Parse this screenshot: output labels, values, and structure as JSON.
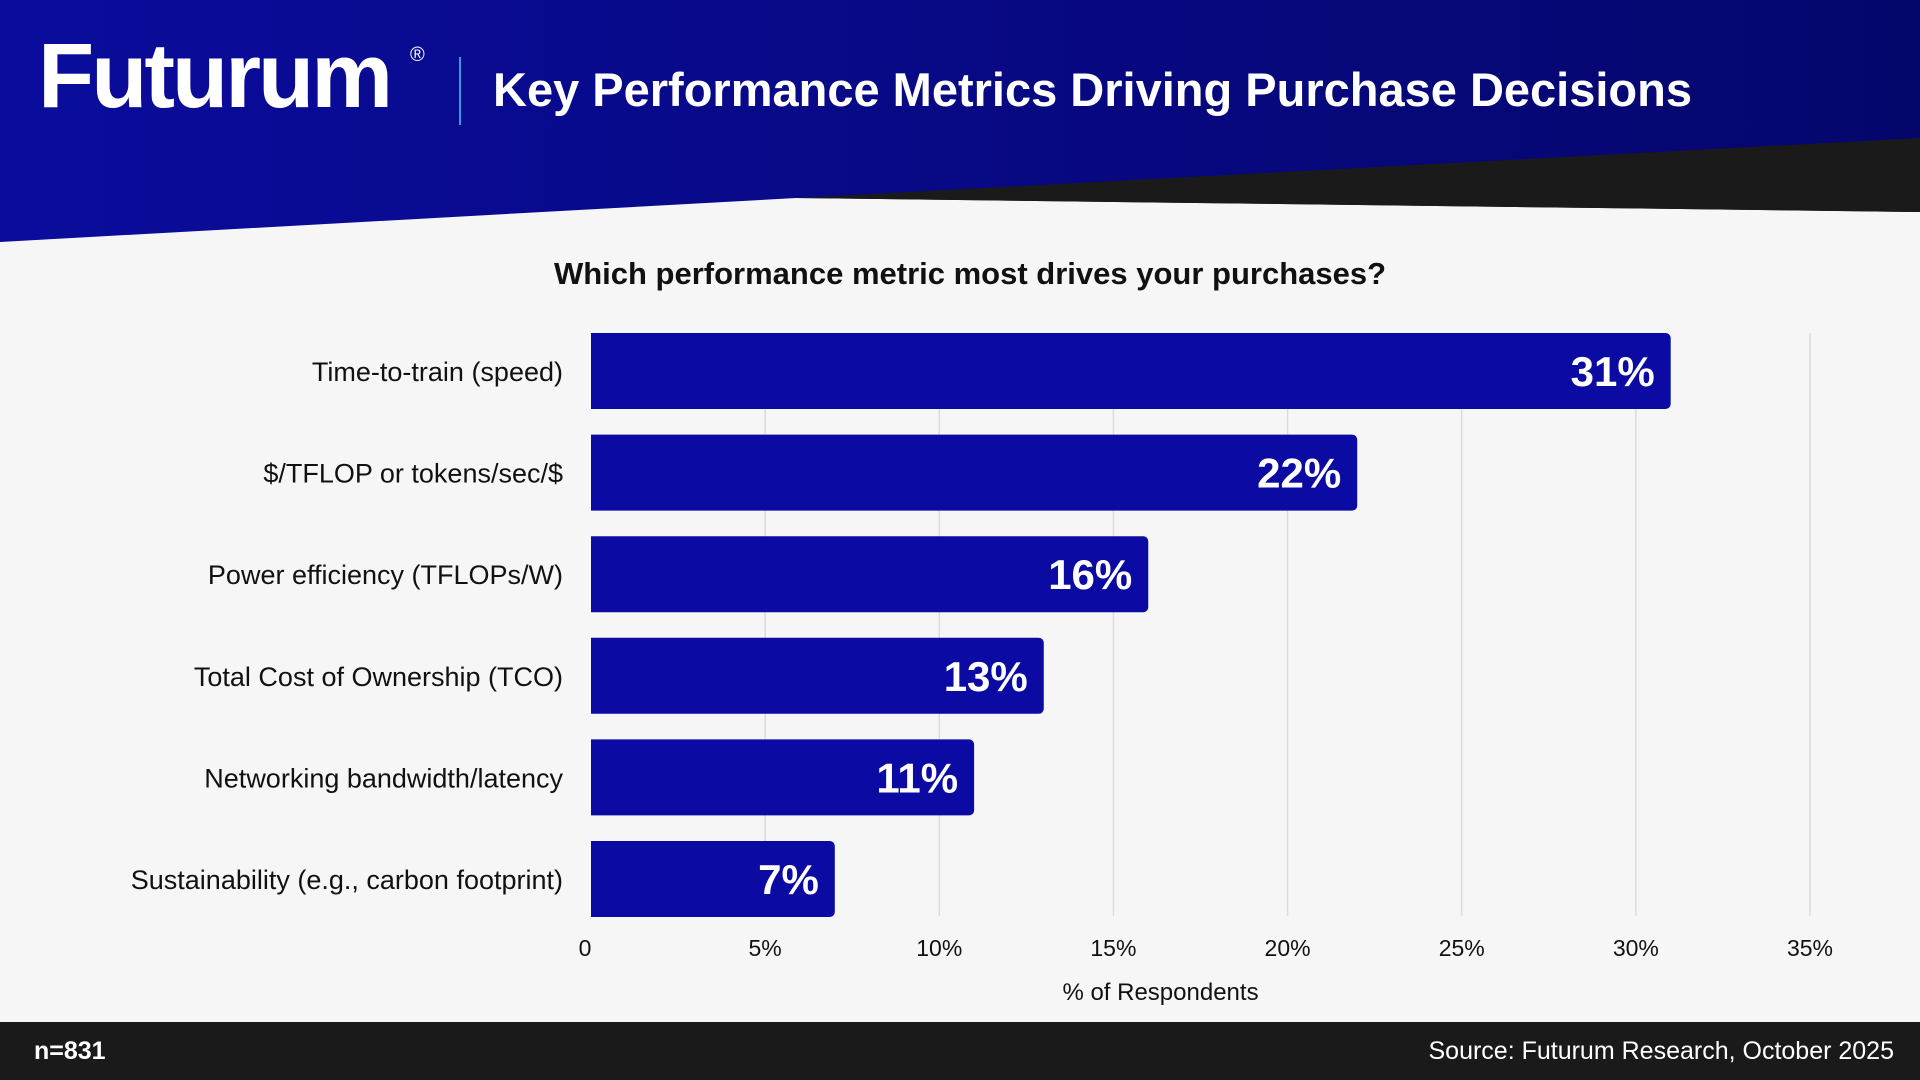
{
  "header": {
    "logo": "Futurum",
    "registered": "®",
    "title": "Key Performance Metrics Driving Purchase Decisions"
  },
  "colors": {
    "bar": "#0b0ba3",
    "header": "#0a0c9a",
    "dark": "#1a1a1a",
    "background": "#f6f6f6"
  },
  "chart_data": {
    "type": "bar",
    "orientation": "horizontal",
    "title": "Which performance metric most drives your purchases?",
    "xlabel": "% of Respondents",
    "categories": [
      "Time-to-train (speed)",
      "$/TFLOP or tokens/sec/$",
      "Power efficiency (TFLOPs/W)",
      "Total Cost of Ownership (TCO)",
      "Networking bandwidth/latency",
      "Sustainability (e.g., carbon footprint)"
    ],
    "values": [
      31,
      22,
      16,
      13,
      11,
      7
    ],
    "data_labels": [
      "31%",
      "22%",
      "16%",
      "13%",
      "11%",
      "7%"
    ],
    "xlim": [
      0,
      35
    ],
    "xticks": [
      0,
      5,
      10,
      15,
      20,
      25,
      30,
      35
    ],
    "xtick_labels": [
      "0",
      "5%",
      "10%",
      "15%",
      "20%",
      "25%",
      "30%",
      "35%"
    ],
    "grid": "vertical"
  },
  "footer": {
    "sample": "n=831",
    "source": "Source: Futurum Research, October 2025"
  }
}
